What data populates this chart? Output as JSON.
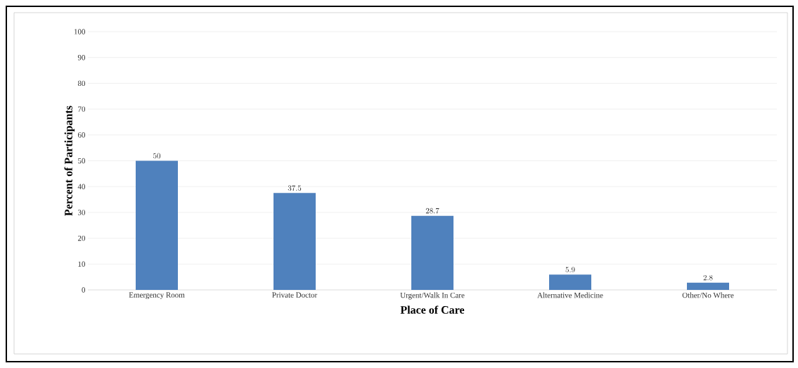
{
  "chart_data": {
    "type": "bar",
    "xlabel": "Place of Care",
    "ylabel": "Percent of Participants",
    "categories": [
      "Emergency Room",
      "Private Doctor",
      "Urgent/Walk In Care",
      "Alternative Medicine",
      "Other/No Where"
    ],
    "values": [
      50,
      37.5,
      28.7,
      5.9,
      2.8
    ],
    "color": "#4f81bd",
    "ylim": [
      0,
      100
    ],
    "yticks": [
      0,
      10,
      20,
      30,
      40,
      50,
      60,
      70,
      80,
      90,
      100
    ],
    "grid": "y",
    "data_labels": true
  }
}
